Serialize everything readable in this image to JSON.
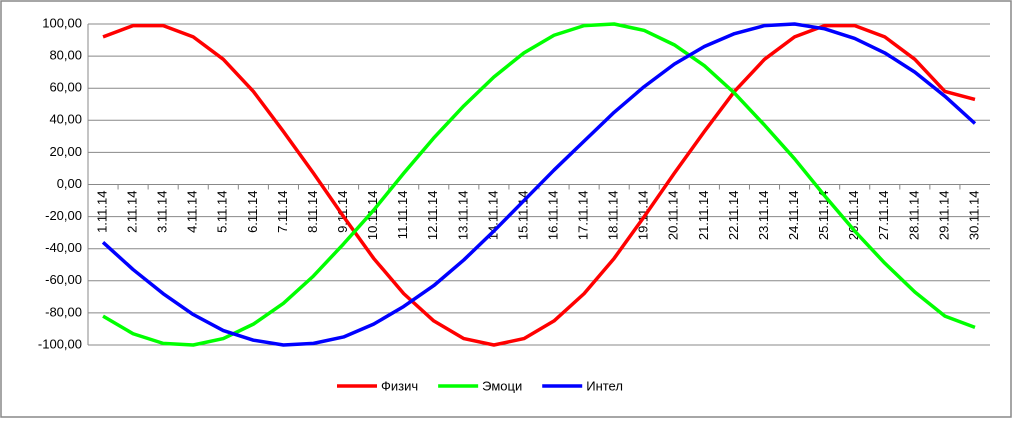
{
  "chart_data": {
    "type": "line",
    "categories": [
      "1.11.14",
      "2.11.14",
      "3.11.14",
      "4.11.14",
      "5.11.14",
      "6.11.14",
      "7.11.14",
      "8.11.14",
      "9.11.14",
      "10.11.14",
      "11.11.14",
      "12.11.14",
      "13.11.14",
      "14.11.14",
      "15.11.14",
      "16.11.14",
      "17.11.14",
      "18.11.14",
      "19.11.14",
      "20.11.14",
      "21.11.14",
      "22.11.14",
      "23.11.14",
      "24.11.14",
      "25.11.14",
      "26.11.14",
      "27.11.14",
      "28.11.14",
      "29.11.14",
      "30.11.14"
    ],
    "series": [
      {
        "name": "Физич",
        "color": "#ff0000",
        "values": [
          92,
          99,
          99,
          92,
          78,
          58,
          33,
          7,
          -20,
          -46,
          -68,
          -85,
          -96,
          -100,
          -96,
          -85,
          -68,
          -46,
          -20,
          7,
          33,
          58,
          78,
          92,
          99,
          99,
          92,
          78,
          58,
          53
        ]
      },
      {
        "name": "Эмоци",
        "color": "#00ff00",
        "values": [
          -82,
          -93,
          -99,
          -100,
          -96,
          -87,
          -74,
          -57,
          -37,
          -16,
          7,
          29,
          49,
          67,
          82,
          93,
          99,
          100,
          96,
          87,
          74,
          57,
          37,
          16,
          -7,
          -29,
          -49,
          -67,
          -82,
          -89
        ]
      },
      {
        "name": "Интел",
        "color": "#0000ff",
        "values": [
          -36,
          -53,
          -68,
          -81,
          -91,
          -97,
          -100,
          -99,
          -95,
          -87,
          -76,
          -63,
          -47,
          -29,
          -10,
          9,
          27,
          45,
          61,
          75,
          86,
          94,
          99,
          100,
          97,
          91,
          82,
          70,
          55,
          38
        ]
      }
    ],
    "ylim": [
      -100,
      100
    ],
    "yticks": [
      {
        "value": -100,
        "label": "-100,00"
      },
      {
        "value": -80,
        "label": "-80,00"
      },
      {
        "value": -60,
        "label": "-60,00"
      },
      {
        "value": -40,
        "label": "-40,00"
      },
      {
        "value": -20,
        "label": "-20,00"
      },
      {
        "value": 0,
        "label": "0,00"
      },
      {
        "value": 20,
        "label": "20,00"
      },
      {
        "value": 40,
        "label": "40,00"
      },
      {
        "value": 60,
        "label": "60,00"
      },
      {
        "value": 80,
        "label": "80,00"
      },
      {
        "value": 100,
        "label": "100,00"
      }
    ],
    "grid": true,
    "legend": "bottom"
  }
}
